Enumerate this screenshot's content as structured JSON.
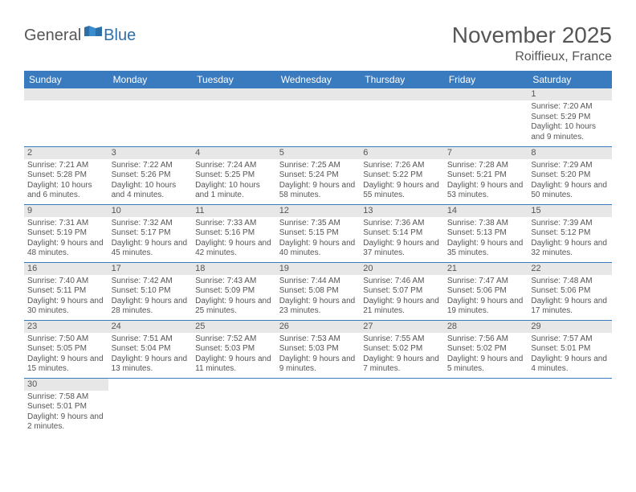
{
  "logo": {
    "general": "General",
    "blue": "Blue"
  },
  "title": "November 2025",
  "location": "Roiffieux, France",
  "colors": {
    "header_bg": "#3a7bbf",
    "header_text": "#ffffff",
    "daynum_bg": "#e7e7e7",
    "border": "#3a7bbf",
    "text": "#555555",
    "title_text": "#565656"
  },
  "day_headers": [
    "Sunday",
    "Monday",
    "Tuesday",
    "Wednesday",
    "Thursday",
    "Friday",
    "Saturday"
  ],
  "weeks": [
    [
      null,
      null,
      null,
      null,
      null,
      null,
      {
        "n": "1",
        "sunrise": "Sunrise: 7:20 AM",
        "sunset": "Sunset: 5:29 PM",
        "daylight": "Daylight: 10 hours and 9 minutes."
      }
    ],
    [
      {
        "n": "2",
        "sunrise": "Sunrise: 7:21 AM",
        "sunset": "Sunset: 5:28 PM",
        "daylight": "Daylight: 10 hours and 6 minutes."
      },
      {
        "n": "3",
        "sunrise": "Sunrise: 7:22 AM",
        "sunset": "Sunset: 5:26 PM",
        "daylight": "Daylight: 10 hours and 4 minutes."
      },
      {
        "n": "4",
        "sunrise": "Sunrise: 7:24 AM",
        "sunset": "Sunset: 5:25 PM",
        "daylight": "Daylight: 10 hours and 1 minute."
      },
      {
        "n": "5",
        "sunrise": "Sunrise: 7:25 AM",
        "sunset": "Sunset: 5:24 PM",
        "daylight": "Daylight: 9 hours and 58 minutes."
      },
      {
        "n": "6",
        "sunrise": "Sunrise: 7:26 AM",
        "sunset": "Sunset: 5:22 PM",
        "daylight": "Daylight: 9 hours and 55 minutes."
      },
      {
        "n": "7",
        "sunrise": "Sunrise: 7:28 AM",
        "sunset": "Sunset: 5:21 PM",
        "daylight": "Daylight: 9 hours and 53 minutes."
      },
      {
        "n": "8",
        "sunrise": "Sunrise: 7:29 AM",
        "sunset": "Sunset: 5:20 PM",
        "daylight": "Daylight: 9 hours and 50 minutes."
      }
    ],
    [
      {
        "n": "9",
        "sunrise": "Sunrise: 7:31 AM",
        "sunset": "Sunset: 5:19 PM",
        "daylight": "Daylight: 9 hours and 48 minutes."
      },
      {
        "n": "10",
        "sunrise": "Sunrise: 7:32 AM",
        "sunset": "Sunset: 5:17 PM",
        "daylight": "Daylight: 9 hours and 45 minutes."
      },
      {
        "n": "11",
        "sunrise": "Sunrise: 7:33 AM",
        "sunset": "Sunset: 5:16 PM",
        "daylight": "Daylight: 9 hours and 42 minutes."
      },
      {
        "n": "12",
        "sunrise": "Sunrise: 7:35 AM",
        "sunset": "Sunset: 5:15 PM",
        "daylight": "Daylight: 9 hours and 40 minutes."
      },
      {
        "n": "13",
        "sunrise": "Sunrise: 7:36 AM",
        "sunset": "Sunset: 5:14 PM",
        "daylight": "Daylight: 9 hours and 37 minutes."
      },
      {
        "n": "14",
        "sunrise": "Sunrise: 7:38 AM",
        "sunset": "Sunset: 5:13 PM",
        "daylight": "Daylight: 9 hours and 35 minutes."
      },
      {
        "n": "15",
        "sunrise": "Sunrise: 7:39 AM",
        "sunset": "Sunset: 5:12 PM",
        "daylight": "Daylight: 9 hours and 32 minutes."
      }
    ],
    [
      {
        "n": "16",
        "sunrise": "Sunrise: 7:40 AM",
        "sunset": "Sunset: 5:11 PM",
        "daylight": "Daylight: 9 hours and 30 minutes."
      },
      {
        "n": "17",
        "sunrise": "Sunrise: 7:42 AM",
        "sunset": "Sunset: 5:10 PM",
        "daylight": "Daylight: 9 hours and 28 minutes."
      },
      {
        "n": "18",
        "sunrise": "Sunrise: 7:43 AM",
        "sunset": "Sunset: 5:09 PM",
        "daylight": "Daylight: 9 hours and 25 minutes."
      },
      {
        "n": "19",
        "sunrise": "Sunrise: 7:44 AM",
        "sunset": "Sunset: 5:08 PM",
        "daylight": "Daylight: 9 hours and 23 minutes."
      },
      {
        "n": "20",
        "sunrise": "Sunrise: 7:46 AM",
        "sunset": "Sunset: 5:07 PM",
        "daylight": "Daylight: 9 hours and 21 minutes."
      },
      {
        "n": "21",
        "sunrise": "Sunrise: 7:47 AM",
        "sunset": "Sunset: 5:06 PM",
        "daylight": "Daylight: 9 hours and 19 minutes."
      },
      {
        "n": "22",
        "sunrise": "Sunrise: 7:48 AM",
        "sunset": "Sunset: 5:06 PM",
        "daylight": "Daylight: 9 hours and 17 minutes."
      }
    ],
    [
      {
        "n": "23",
        "sunrise": "Sunrise: 7:50 AM",
        "sunset": "Sunset: 5:05 PM",
        "daylight": "Daylight: 9 hours and 15 minutes."
      },
      {
        "n": "24",
        "sunrise": "Sunrise: 7:51 AM",
        "sunset": "Sunset: 5:04 PM",
        "daylight": "Daylight: 9 hours and 13 minutes."
      },
      {
        "n": "25",
        "sunrise": "Sunrise: 7:52 AM",
        "sunset": "Sunset: 5:03 PM",
        "daylight": "Daylight: 9 hours and 11 minutes."
      },
      {
        "n": "26",
        "sunrise": "Sunrise: 7:53 AM",
        "sunset": "Sunset: 5:03 PM",
        "daylight": "Daylight: 9 hours and 9 minutes."
      },
      {
        "n": "27",
        "sunrise": "Sunrise: 7:55 AM",
        "sunset": "Sunset: 5:02 PM",
        "daylight": "Daylight: 9 hours and 7 minutes."
      },
      {
        "n": "28",
        "sunrise": "Sunrise: 7:56 AM",
        "sunset": "Sunset: 5:02 PM",
        "daylight": "Daylight: 9 hours and 5 minutes."
      },
      {
        "n": "29",
        "sunrise": "Sunrise: 7:57 AM",
        "sunset": "Sunset: 5:01 PM",
        "daylight": "Daylight: 9 hours and 4 minutes."
      }
    ],
    [
      {
        "n": "30",
        "sunrise": "Sunrise: 7:58 AM",
        "sunset": "Sunset: 5:01 PM",
        "daylight": "Daylight: 9 hours and 2 minutes."
      },
      null,
      null,
      null,
      null,
      null,
      null
    ]
  ]
}
